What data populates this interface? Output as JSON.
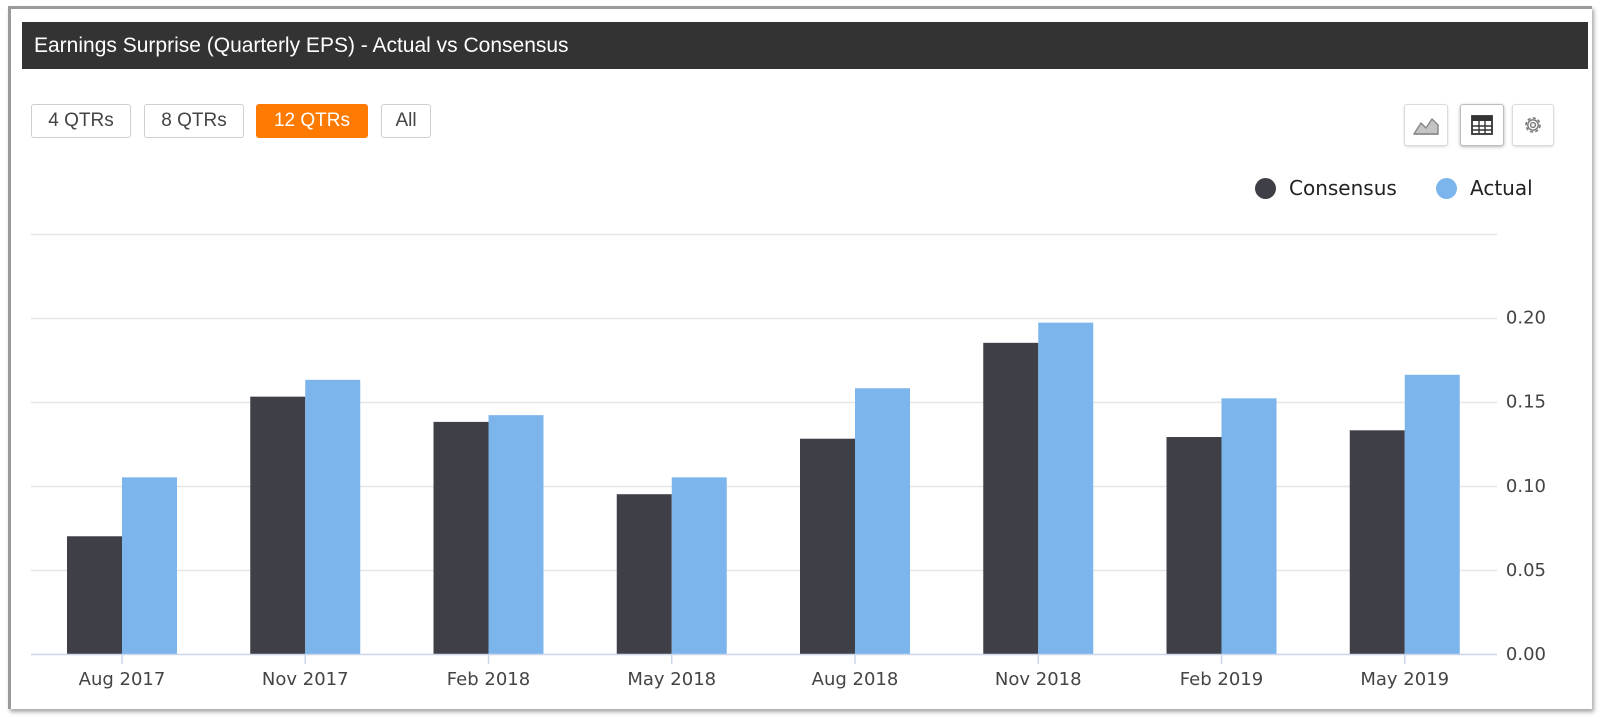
{
  "header": {
    "title": "Earnings Surprise (Quarterly EPS) - Actual vs Consensus"
  },
  "range_buttons": [
    {
      "label": "4 QTRs",
      "active": false
    },
    {
      "label": "8 QTRs",
      "active": false
    },
    {
      "label": "12 QTRs",
      "active": true
    },
    {
      "label": "All",
      "active": false
    }
  ],
  "toolbar": {
    "chart_view_icon": "area-chart-icon",
    "table_view_icon": "table-icon",
    "settings_icon": "gear-icon"
  },
  "colors": {
    "consensus": "#3f4047",
    "actual": "#7cb5ec",
    "active_button": "#ff7a00",
    "title_bar": "#333333",
    "grid": "#e6e6e6"
  },
  "chart_data": {
    "type": "bar",
    "title": "",
    "xlabel": "",
    "ylabel": "",
    "categories": [
      "Aug 2017",
      "Nov 2017",
      "Feb 2018",
      "May 2018",
      "Aug 2018",
      "Nov 2018",
      "Feb 2019",
      "May 2019"
    ],
    "series": [
      {
        "name": "Consensus",
        "color": "#3f4047",
        "values": [
          0.07,
          0.153,
          0.138,
          0.095,
          0.128,
          0.185,
          0.129,
          0.133
        ]
      },
      {
        "name": "Actual",
        "color": "#7cb5ec",
        "values": [
          0.105,
          0.163,
          0.142,
          0.105,
          0.158,
          0.197,
          0.152,
          0.166
        ]
      }
    ],
    "y_ticks": [
      "0.00",
      "0.05",
      "0.10",
      "0.15",
      "0.20"
    ],
    "ylim": [
      0,
      0.25
    ],
    "y_axis_position": "right",
    "grid": true,
    "legend_position": "top-right"
  }
}
